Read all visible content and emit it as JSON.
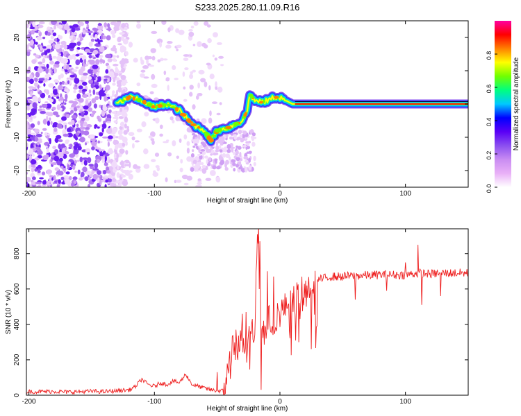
{
  "title": "S233.2025.280.11.09.R16",
  "chart_data": [
    {
      "type": "heatmap",
      "name": "spectrogram",
      "xlabel": "Height of straight line (km)",
      "ylabel": "Frequency (Hz)",
      "xlim": [
        -202,
        150
      ],
      "ylim": [
        -25,
        25
      ],
      "xticks": [
        -200,
        -100,
        0,
        100
      ],
      "yticks": [
        -20,
        -10,
        0,
        10,
        20
      ],
      "colorbar": {
        "label": "Normalized spectral amplitude",
        "range": [
          0,
          1
        ],
        "ticks": [
          "0.0",
          "0.2",
          "0.4",
          "0.6",
          "0.8"
        ],
        "colors": [
          "#ffffff",
          "#e9b0f7",
          "#c98cf2",
          "#8b4ff0",
          "#5a00f6",
          "#0000ff",
          "#00c8ff",
          "#00ff80",
          "#70ff00",
          "#ffff00",
          "#ff8000",
          "#ff0000",
          "#ff00a0"
        ]
      },
      "ridge": {
        "x": [
          -130,
          -120,
          -110,
          -100,
          -90,
          -80,
          -70,
          -60,
          -55,
          -50,
          -40,
          -30,
          -26,
          -24,
          -20,
          -15,
          -10,
          -5,
          0,
          5,
          10,
          20,
          40,
          60,
          80,
          100,
          120,
          150
        ],
        "y": [
          0,
          2,
          1,
          -1,
          0,
          -2,
          -6,
          -8,
          -11,
          -8,
          -7,
          -5,
          -2,
          3,
          1,
          0.5,
          1,
          2,
          2,
          1,
          0,
          0,
          0,
          0,
          0,
          0,
          0,
          0
        ]
      }
    },
    {
      "type": "line",
      "name": "snr",
      "xlabel": "Height of straight line (km)",
      "ylabel": "SNR (10 * v/v)",
      "xlim": [
        -202,
        150
      ],
      "ylim": [
        0,
        940
      ],
      "xticks": [
        -200,
        -100,
        0,
        100
      ],
      "yticks": [
        0,
        200,
        400,
        600,
        800
      ],
      "color": "#ee1c1c",
      "series": [
        {
          "name": "SNR",
          "x": [
            -202,
            -190,
            -180,
            -170,
            -160,
            -150,
            -140,
            -130,
            -120,
            -115,
            -110,
            -105,
            -100,
            -95,
            -90,
            -85,
            -80,
            -75,
            -70,
            -65,
            -60,
            -55,
            -50,
            -45,
            -42,
            -40,
            -38,
            -35,
            -30,
            -25,
            -20,
            -18,
            -17,
            -15,
            -13,
            -10,
            -5,
            0,
            5,
            10,
            15,
            20,
            25,
            30,
            35,
            40,
            50,
            60,
            80,
            100,
            110,
            120,
            130,
            150
          ],
          "y": [
            20,
            20,
            22,
            18,
            20,
            22,
            20,
            25,
            30,
            50,
            90,
            60,
            50,
            70,
            60,
            80,
            70,
            120,
            60,
            50,
            40,
            30,
            25,
            25,
            120,
            200,
            250,
            280,
            300,
            320,
            380,
            880,
            780,
            380,
            360,
            420,
            430,
            470,
            500,
            540,
            560,
            600,
            620,
            650,
            660,
            670,
            670,
            675,
            680,
            680,
            690,
            685,
            690,
            690
          ]
        }
      ],
      "spikes": [
        {
          "x": -50,
          "y": 130
        },
        {
          "x": -38,
          "y": 330
        },
        {
          "x": -35,
          "y": 370
        },
        {
          "x": -30,
          "y": 460
        },
        {
          "x": -27,
          "y": 470
        },
        {
          "x": -22,
          "y": 430
        },
        {
          "x": -17,
          "y": 950
        },
        {
          "x": -16,
          "y": 870
        },
        {
          "x": -15,
          "y": 30
        },
        {
          "x": -10,
          "y": 700
        },
        {
          "x": -5,
          "y": 670
        },
        {
          "x": 20,
          "y": 550
        },
        {
          "x": 60,
          "y": 540
        },
        {
          "x": 85,
          "y": 590
        },
        {
          "x": 100,
          "y": 750
        },
        {
          "x": 110,
          "y": 850
        },
        {
          "x": 113,
          "y": 510
        },
        {
          "x": 128,
          "y": 560
        }
      ]
    }
  ]
}
